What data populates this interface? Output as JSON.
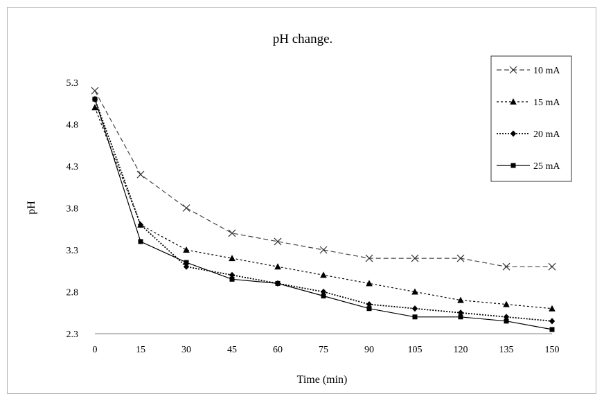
{
  "chart_data": {
    "type": "line",
    "title": "pH change.",
    "xlabel": "Time  (min)",
    "ylabel": "pH",
    "x": [
      0,
      15,
      30,
      45,
      60,
      75,
      90,
      105,
      120,
      135,
      150
    ],
    "x_tick_labels": [
      "0",
      "15",
      "30",
      "45",
      "60",
      "75",
      "90",
      "105",
      "120",
      "135",
      "150"
    ],
    "y_tick_labels": [
      "2.3",
      "2.8",
      "3.3",
      "3.8",
      "4.3",
      "4.8",
      "5.3"
    ],
    "ylim": [
      2.3,
      5.3
    ],
    "grid": false,
    "legend_position": "top-right",
    "series": [
      {
        "name": "10 mA",
        "marker": "x",
        "dash": "dashed",
        "values": [
          5.2,
          4.2,
          3.8,
          3.5,
          3.4,
          3.3,
          3.2,
          3.2,
          3.2,
          3.1,
          3.1
        ]
      },
      {
        "name": "15 mA",
        "marker": "triangle",
        "dash": "dotted",
        "values": [
          5.0,
          3.6,
          3.3,
          3.2,
          3.1,
          3.0,
          2.9,
          2.8,
          2.7,
          2.65,
          2.6
        ]
      },
      {
        "name": "20 mA",
        "marker": "diamond",
        "dash": "dense-dotted",
        "values": [
          5.1,
          3.6,
          3.1,
          3.0,
          2.9,
          2.8,
          2.65,
          2.6,
          2.55,
          2.5,
          2.45
        ]
      },
      {
        "name": "25 mA",
        "marker": "square",
        "dash": "solid",
        "values": [
          5.1,
          3.4,
          3.15,
          2.95,
          2.9,
          2.75,
          2.6,
          2.5,
          2.5,
          2.45,
          2.35
        ]
      }
    ]
  }
}
